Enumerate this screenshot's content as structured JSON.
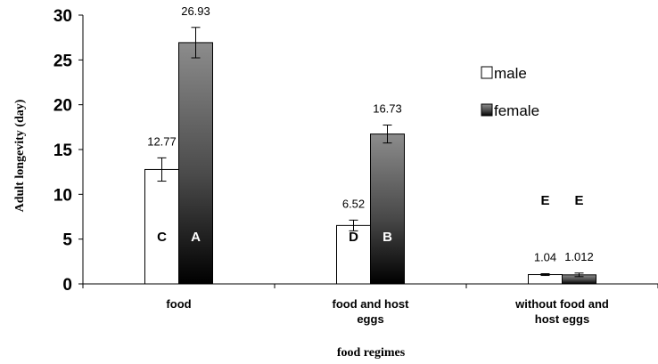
{
  "chart_data": {
    "type": "bar",
    "categories": [
      [
        "food"
      ],
      [
        "food and host",
        "eggs"
      ],
      [
        "without food and",
        "host eggs"
      ]
    ],
    "series": [
      {
        "name": "male",
        "values": [
          12.77,
          6.52,
          1.04
        ],
        "value_labels": [
          "12.77",
          "6.52",
          "1.04"
        ],
        "errors": [
          1.3,
          0.6,
          0.1
        ],
        "letters": [
          "C",
          "D",
          "E"
        ],
        "color": "#ffffff"
      },
      {
        "name": "female",
        "values": [
          26.93,
          16.73,
          1.012
        ],
        "value_labels": [
          "26.93",
          "16.73",
          "1.012"
        ],
        "errors": [
          1.7,
          1.0,
          0.2
        ],
        "letters": [
          "A",
          "B",
          "E"
        ],
        "color": "gradient-gray-to-black"
      }
    ],
    "xlabel": "food regimes",
    "ylabel": "Adult longevity (day)",
    "ylim": [
      0,
      30
    ],
    "yticks": [
      "0",
      "5",
      "10",
      "15",
      "20",
      "25",
      "30"
    ],
    "grid": false,
    "legend": "right"
  }
}
